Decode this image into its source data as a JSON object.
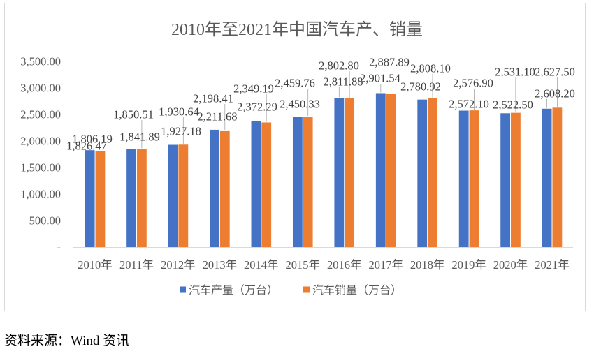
{
  "chart_data": {
    "type": "bar",
    "title": "2010年至2021年中国汽车产、销量",
    "categories": [
      "2010年",
      "2011年",
      "2012年",
      "2013年",
      "2014年",
      "2015年",
      "2016年",
      "2017年",
      "2018年",
      "2019年",
      "2020年",
      "2021年"
    ],
    "series": [
      {
        "name": "汽车产量（万台）",
        "color": "#4472C4",
        "values": [
          1826.47,
          1841.89,
          1927.18,
          2211.68,
          2372.29,
          2450.33,
          2811.88,
          2901.54,
          2780.92,
          2572.1,
          2522.5,
          2608.2
        ],
        "labels": [
          "1,826.47",
          "1,841.89",
          "1,927.18",
          "2,211.68",
          "2,372.29",
          "2,450.33",
          "2,811.88",
          "2,901.54",
          "2,780.92",
          "2,572.10",
          "2,522.50",
          "2,608.20"
        ]
      },
      {
        "name": "汽车销量（万台）",
        "color": "#ED7D31",
        "values": [
          1806.19,
          1850.51,
          1930.64,
          2198.41,
          2349.19,
          2459.76,
          2802.8,
          2887.89,
          2808.1,
          2576.9,
          2531.1,
          2627.5
        ],
        "labels": [
          "1,806.19",
          "1,850.51",
          "1,930.64",
          "2,198.41",
          "2,349.19",
          "2,459.76",
          "2,802.80",
          "2,887.89",
          "2,808.10",
          "2,576.90",
          "2,531.10",
          "2,627.50"
        ]
      }
    ],
    "ylim": [
      0,
      3500
    ],
    "y_tick_labels": [
      "-",
      "500.00",
      "1,000.00",
      "1,500.00",
      "2,000.00",
      "2,500.00",
      "3,000.00",
      "3,500.00"
    ],
    "grid": false,
    "legend": "bottom"
  },
  "source_note": "资料来源：Wind 资讯"
}
